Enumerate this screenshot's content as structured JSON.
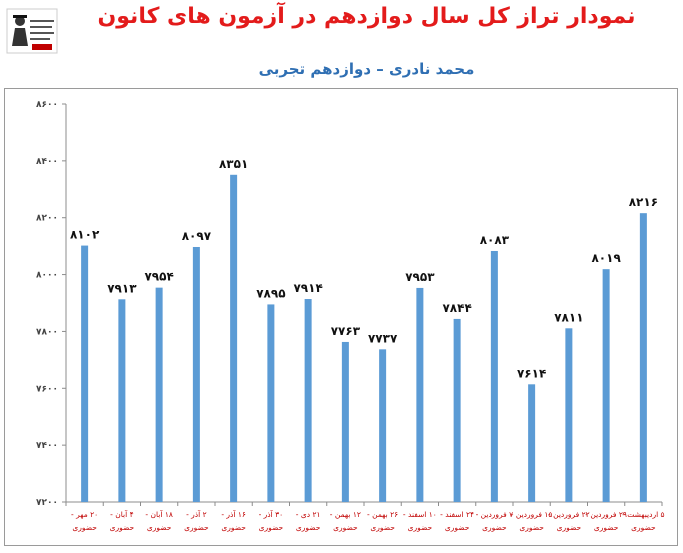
{
  "header": {
    "title": "نمودار تراز کل سال دوازدهم در آزمون های کانون",
    "subtitle": "محمد نادری – دوازدهم تجربی"
  },
  "colors": {
    "bar": "#5b9bd5",
    "title": "#e31b1b",
    "subtitle": "#2f6fb3",
    "category_label": "#c00000"
  },
  "chart_data": {
    "type": "bar",
    "title": "نمودار تراز کل سال دوازدهم در آزمون های کانون",
    "subtitle": "محمد نادری – دوازدهم تجربی",
    "xlabel": "",
    "ylabel": "",
    "ylim": [
      7200,
      8600
    ],
    "yticks": [
      7200,
      7400,
      7600,
      7800,
      8000,
      8200,
      8400,
      8600
    ],
    "ytick_labels": [
      "۷۲۰۰",
      "۷۴۰۰",
      "۷۶۰۰",
      "۷۸۰۰",
      "۸۰۰۰",
      "۸۲۰۰",
      "۸۴۰۰",
      "۸۶۰۰"
    ],
    "grid": false,
    "legend": "none",
    "categories": [
      [
        "۲۰ مهر -",
        "حضوری"
      ],
      [
        "۴ آبان -",
        "حضوری"
      ],
      [
        "۱۸ آبان -",
        "حضوری"
      ],
      [
        "۲ آذر -",
        "حضوری"
      ],
      [
        "۱۶ آذر -",
        "حضوری"
      ],
      [
        "۳۰ آذر -",
        "حضوری"
      ],
      [
        "۲۱ دی -",
        "حضوری"
      ],
      [
        "۱۲ بهمن -",
        "حضوری"
      ],
      [
        "۲۶ بهمن -",
        "حضوری"
      ],
      [
        "۱۰ اسفند -",
        "حضوری"
      ],
      [
        "۲۴ اسفند -",
        "حضوری"
      ],
      [
        "۷ فروردین -",
        "حضوری"
      ],
      [
        "۱۵ فروردین -",
        "حضوری"
      ],
      [
        "۲۲ فروردین -",
        "حضوری"
      ],
      [
        "۲۹ فروردین -",
        "حضوری"
      ],
      [
        "۵ اردیبهشت -",
        "حضوری"
      ]
    ],
    "values": [
      8102,
      7913,
      7954,
      8097,
      8351,
      7895,
      7914,
      7763,
      7737,
      7953,
      7844,
      8083,
      7614,
      7811,
      8019,
      8216
    ],
    "value_labels": [
      "۸۱۰۲",
      "۷۹۱۳",
      "۷۹۵۴",
      "۸۰۹۷",
      "۸۳۵۱",
      "۷۸۹۵",
      "۷۹۱۴",
      "۷۷۶۳",
      "۷۷۳۷",
      "۷۹۵۳",
      "۷۸۴۴",
      "۸۰۸۳",
      "۷۶۱۴",
      "۷۸۱۱",
      "۸۰۱۹",
      "۸۲۱۶"
    ]
  }
}
